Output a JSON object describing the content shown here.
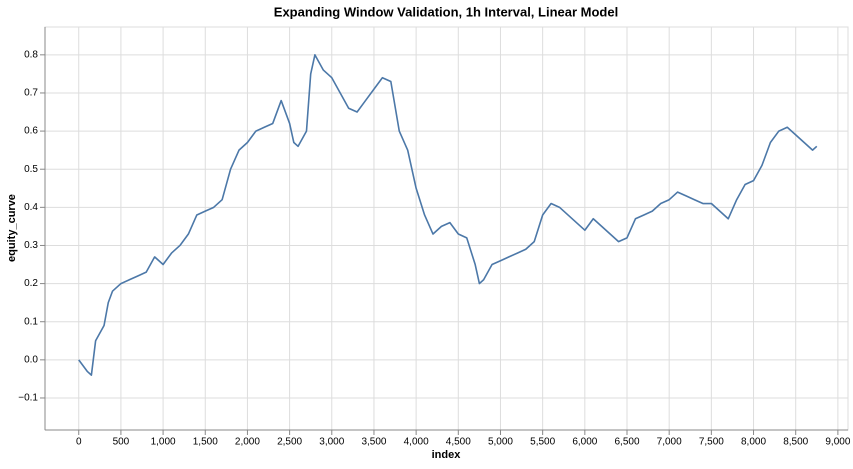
{
  "chart_data": {
    "type": "line",
    "title": "Expanding Window Validation, 1h Interval, Linear Model",
    "x_label": "index",
    "y_label": "equity_curve",
    "x": [
      0,
      100,
      150,
      200,
      300,
      350,
      400,
      500,
      600,
      700,
      800,
      900,
      1000,
      1100,
      1200,
      1300,
      1400,
      1500,
      1600,
      1700,
      1800,
      1900,
      2000,
      2100,
      2200,
      2300,
      2400,
      2500,
      2550,
      2600,
      2700,
      2750,
      2800,
      2900,
      3000,
      3100,
      3200,
      3300,
      3400,
      3500,
      3600,
      3700,
      3800,
      3900,
      4000,
      4100,
      4200,
      4300,
      4400,
      4500,
      4600,
      4700,
      4750,
      4800,
      4900,
      5000,
      5100,
      5200,
      5300,
      5400,
      5500,
      5600,
      5700,
      5800,
      5900,
      6000,
      6100,
      6200,
      6300,
      6400,
      6500,
      6600,
      6700,
      6800,
      6900,
      7000,
      7100,
      7200,
      7300,
      7400,
      7500,
      7600,
      7700,
      7800,
      7900,
      8000,
      8100,
      8200,
      8300,
      8400,
      8500,
      8600,
      8700,
      8750
    ],
    "series": [
      {
        "name": "equity_curve",
        "color": "#4c78a8",
        "values": [
          0.0,
          -0.03,
          -0.04,
          0.05,
          0.09,
          0.15,
          0.18,
          0.2,
          0.21,
          0.22,
          0.23,
          0.27,
          0.25,
          0.28,
          0.3,
          0.33,
          0.38,
          0.39,
          0.4,
          0.42,
          0.5,
          0.55,
          0.57,
          0.6,
          0.61,
          0.62,
          0.68,
          0.62,
          0.57,
          0.56,
          0.6,
          0.75,
          0.8,
          0.76,
          0.74,
          0.7,
          0.66,
          0.65,
          0.68,
          0.71,
          0.74,
          0.73,
          0.6,
          0.55,
          0.45,
          0.38,
          0.33,
          0.35,
          0.36,
          0.33,
          0.32,
          0.25,
          0.2,
          0.21,
          0.25,
          0.26,
          0.27,
          0.28,
          0.29,
          0.31,
          0.38,
          0.41,
          0.4,
          0.38,
          0.36,
          0.34,
          0.37,
          0.35,
          0.33,
          0.31,
          0.32,
          0.37,
          0.38,
          0.39,
          0.41,
          0.42,
          0.44,
          0.43,
          0.42,
          0.41,
          0.41,
          0.39,
          0.37,
          0.42,
          0.46,
          0.47,
          0.51,
          0.57,
          0.6,
          0.61,
          0.59,
          0.57,
          0.55,
          0.56
        ]
      }
    ],
    "xlim": [
      -400,
      9120
    ],
    "ylim": [
      -0.184,
      0.873
    ],
    "xticks": [
      0,
      500,
      {
        "value": 1000,
        "label": "1,000"
      },
      {
        "value": 1500,
        "label": "1,500"
      },
      {
        "value": 2000,
        "label": "2,000"
      },
      {
        "value": 2500,
        "label": "2,500"
      },
      {
        "value": 3000,
        "label": "3,000"
      },
      {
        "value": 3500,
        "label": "3,500"
      },
      {
        "value": 4000,
        "label": "4,000"
      },
      {
        "value": 4500,
        "label": "4,500"
      },
      {
        "value": 5000,
        "label": "5,000"
      },
      {
        "value": 5500,
        "label": "5,500"
      },
      {
        "value": 6000,
        "label": "6,000"
      },
      {
        "value": 6500,
        "label": "6,500"
      },
      {
        "value": 7000,
        "label": "7,000"
      },
      {
        "value": 7500,
        "label": "7,500"
      },
      {
        "value": 8000,
        "label": "8,000"
      },
      {
        "value": 8500,
        "label": "8,500"
      },
      {
        "value": 9000,
        "label": "9,000"
      }
    ],
    "yticks": [
      {
        "value": -0.1,
        "label": "−0.1"
      },
      {
        "value": 0,
        "label": "0.0"
      },
      0.1,
      0.2,
      0.3,
      0.4,
      0.5,
      0.6,
      0.7,
      0.8
    ],
    "grid": true
  }
}
